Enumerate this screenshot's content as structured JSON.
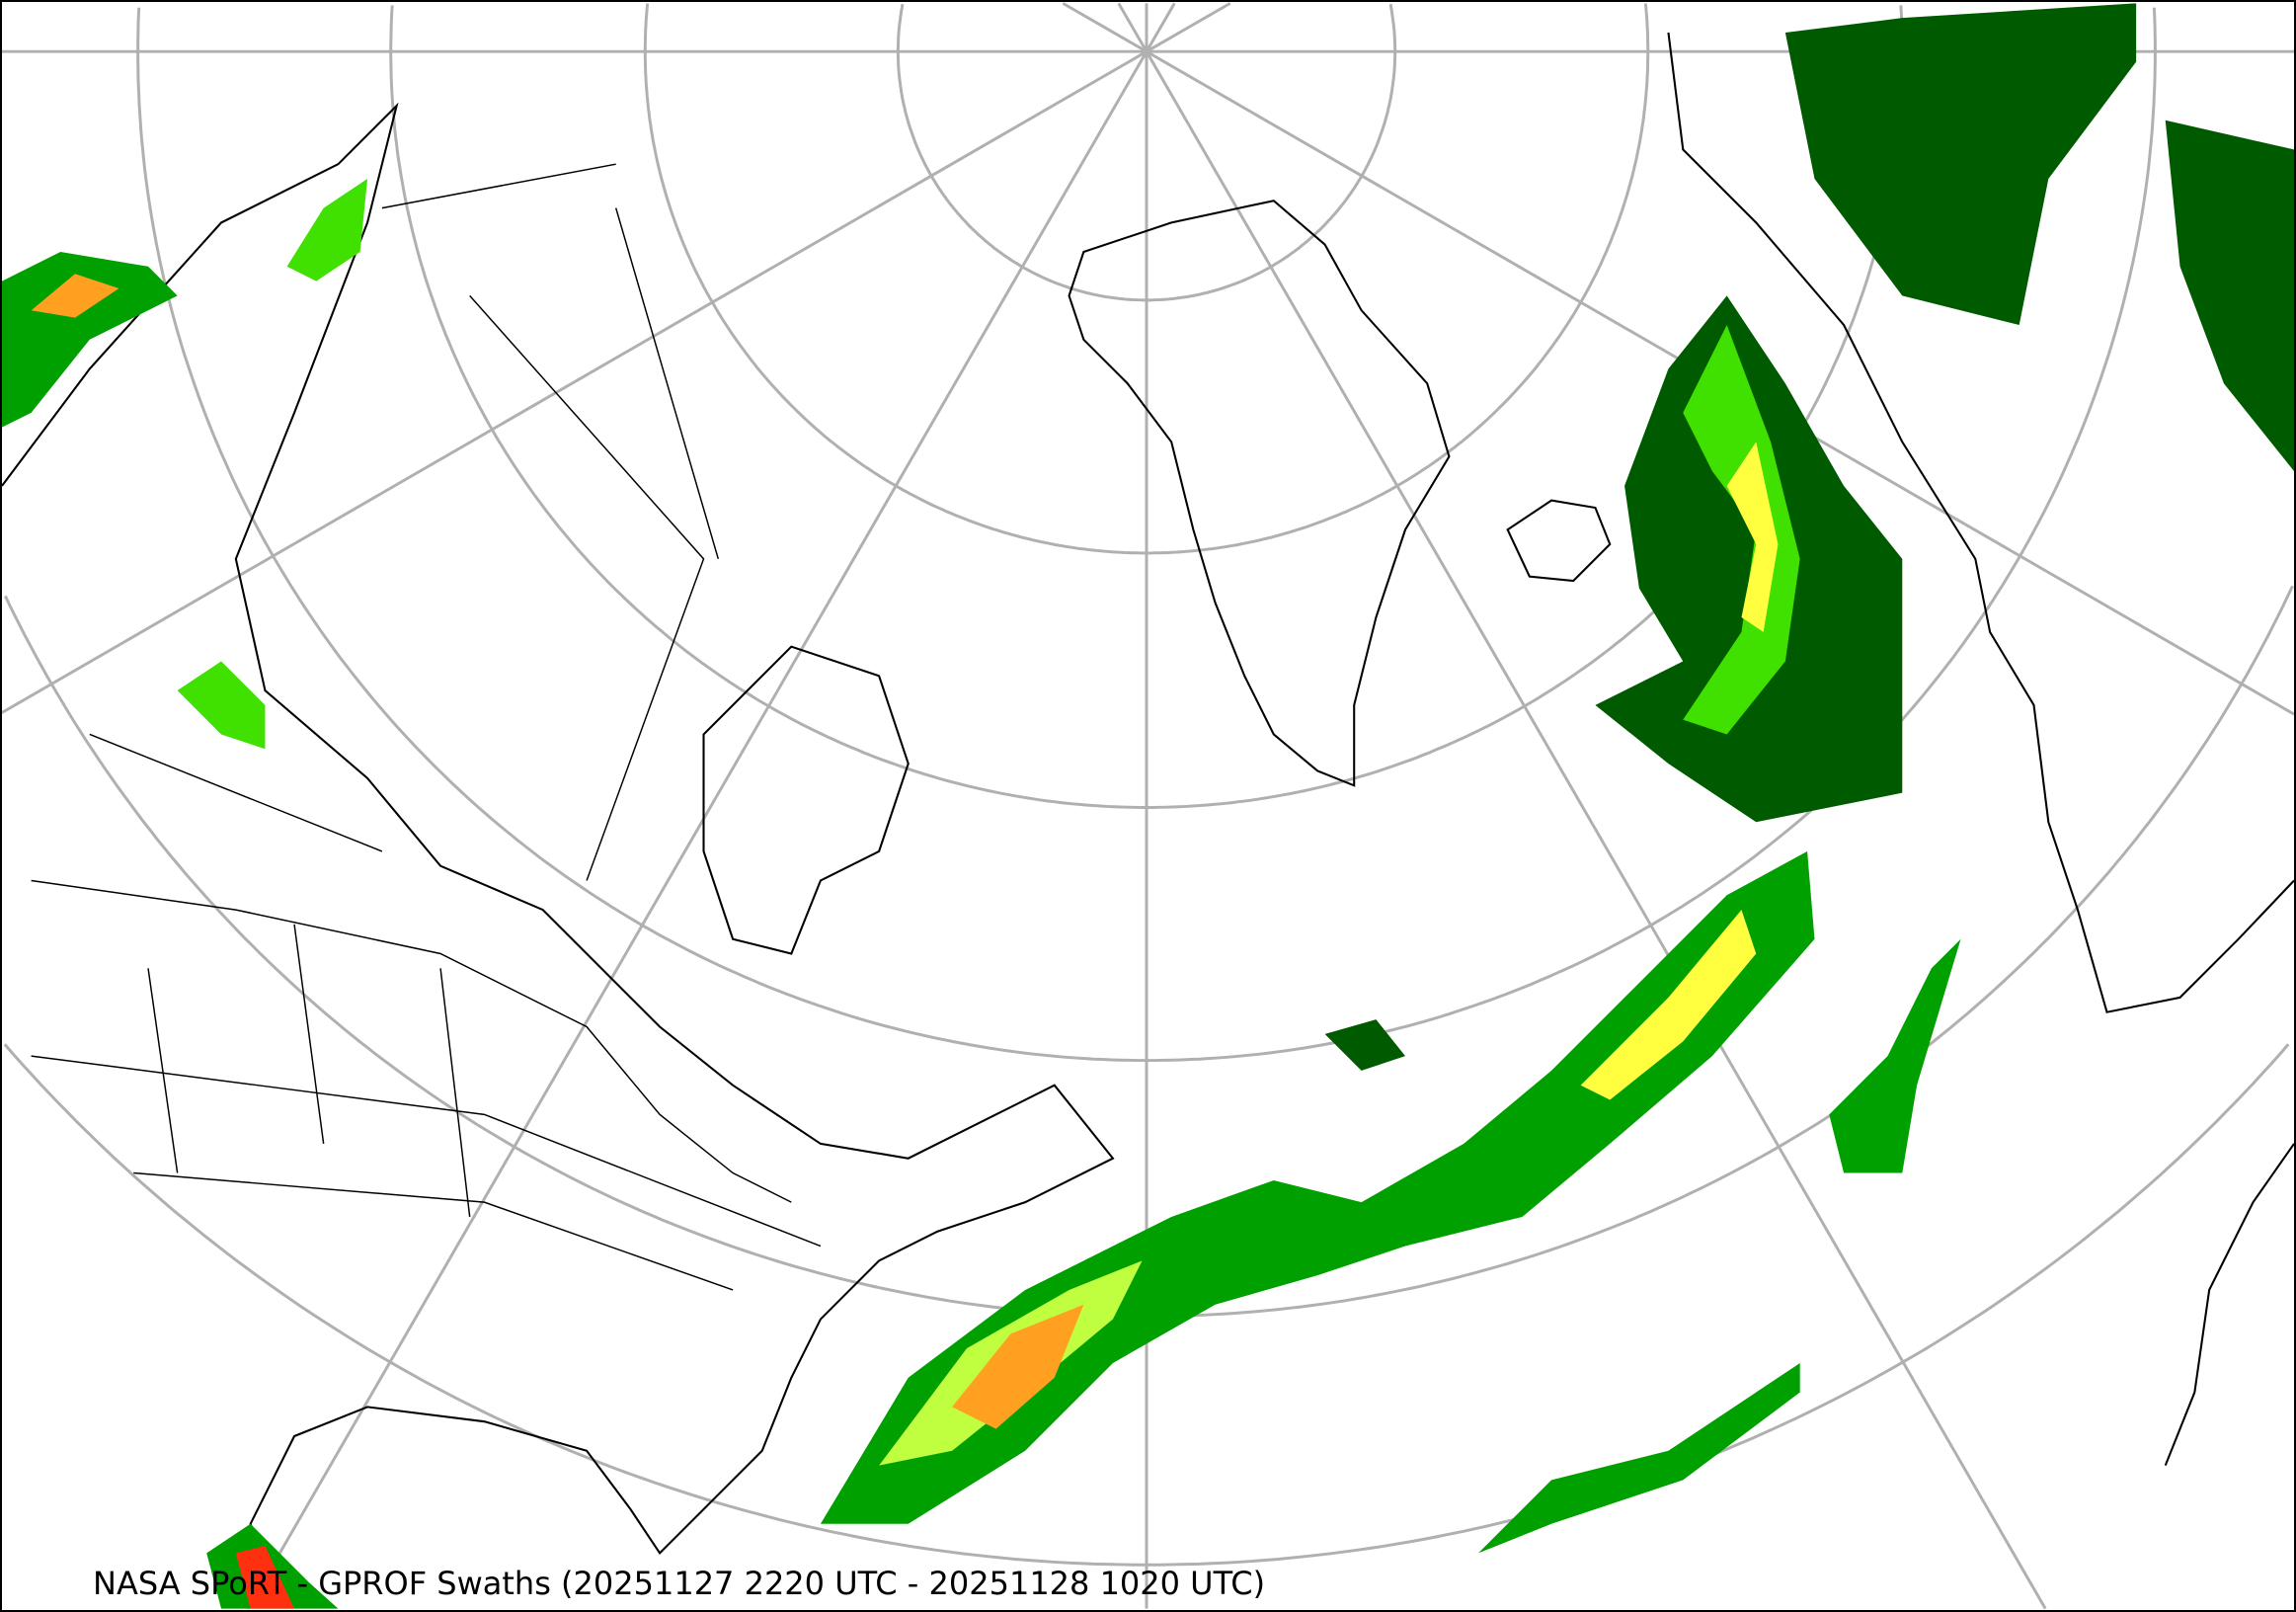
{
  "caption": "NASA SPoRT - GPROF Swaths (20251127 2220 UTC - 20251128 1020 UTC)",
  "map": {
    "projection": "north-polar-stereographic",
    "graticule_color": "#b0b0b0",
    "boundary_color": "#000000",
    "precip_colors": [
      "#005a00",
      "#00a000",
      "#40e000",
      "#c0ff40",
      "#ffff40",
      "#ffa020",
      "#ff3010",
      "#b00000"
    ]
  }
}
